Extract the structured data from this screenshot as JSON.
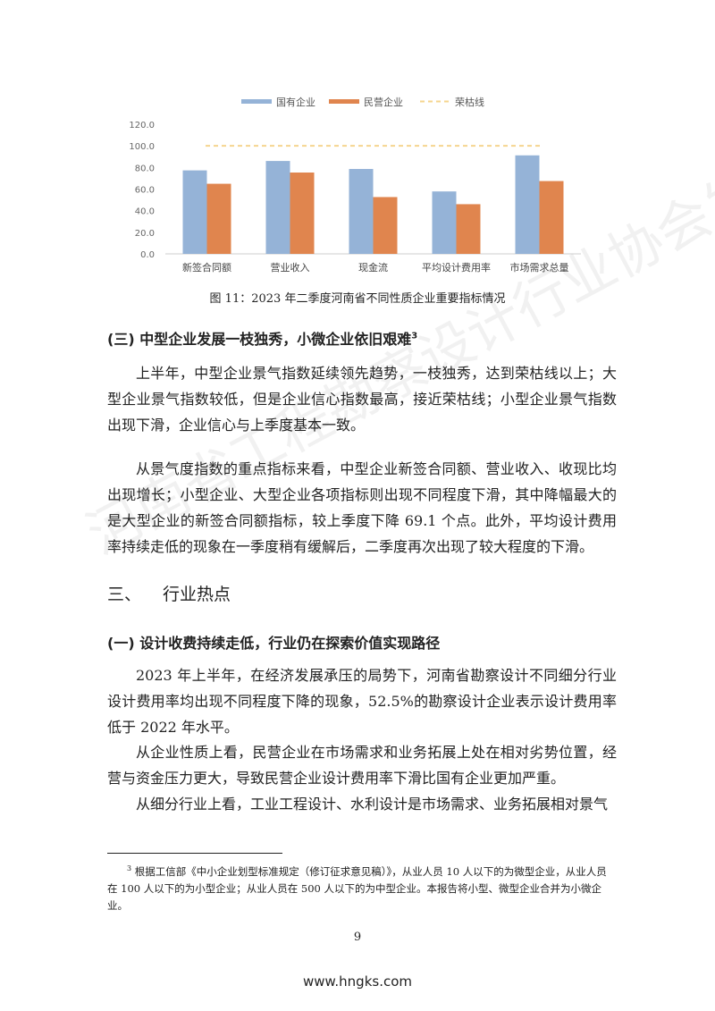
{
  "chart_data": {
    "type": "bar",
    "title": "",
    "categories": [
      "新签合同额",
      "营业收入",
      "现金流",
      "平均设计费用率",
      "市场需求总量"
    ],
    "series": [
      {
        "name": "国有企业",
        "color": "#95b3d7",
        "values": [
          77.3,
          86.0,
          78.6,
          57.8,
          91.2
        ]
      },
      {
        "name": "民营企业",
        "color": "#e0854e",
        "values": [
          64.9,
          75.3,
          52.6,
          46.0,
          67.4
        ]
      }
    ],
    "reference_line": {
      "name": "荣枯线",
      "value": 100,
      "color": "#f5d58e",
      "style": "dashed"
    },
    "yticks": [
      "0.0",
      "20.0",
      "40.0",
      "60.0",
      "80.0",
      "100.0",
      "120.0"
    ],
    "ylim": [
      0,
      120
    ],
    "grid": false,
    "legend": "top"
  },
  "caption": "图 11：2023 年二季度河南省不同性质企业重要指标情况",
  "section3": {
    "heading": "(三) 中型企业发展一枝独秀，小微企业依旧艰难",
    "footnote_mark": "3",
    "p1": "上半年，中型企业景气指数延续领先趋势，一枝独秀，达到荣枯线以上；大型企业景气指数较低，但是企业信心指数最高，接近荣枯线；小型企业景气指数出现下滑，企业信心与上季度基本一致。",
    "p2": "从景气度指数的重点指标来看，中型企业新签合同额、营业收入、收现比均出现增长；小型企业、大型企业各项指标则出现不同程度下滑，其中降幅最大的是大型企业的新签合同额指标，较上季度下降 69.1 个点。此外，平均设计费用率持续走低的现象在一季度稍有缓解后，二季度再次出现了较大程度的下滑。"
  },
  "chapter": {
    "number": "三、",
    "title": "行业热点"
  },
  "section1": {
    "heading": "(一) 设计收费持续走低，行业仍在探索价值实现路径",
    "p1": "2023 年上半年，在经济发展承压的局势下，河南省勘察设计不同细分行业设计费用率均出现不同程度下降的现象，52.5%的勘察设计企业表示设计费用率低于 2022 年水平。",
    "p2": "从企业性质上看，民营企业在市场需求和业务拓展上处在相对劣势位置，经营与资金压力更大，导致民营企业设计费用率下滑比国有企业更加严重。",
    "p3": "从细分行业上看，工业工程设计、水利设计是市场需求、业务拓展相对景气"
  },
  "footnote": {
    "mark": "3",
    "text": "根据工信部《中小企业划型标准规定（修订征求意见稿）》，从业人员 10 人以下的为微型企业，从业人员在 100 人以下的为小型企业；从业人员在 500 人以下的为中型企业。本报告将小型、微型企业合并为小微企业。"
  },
  "page_number": "9",
  "website": "www.hngks.com",
  "watermark": "河南省工程勘察设计行业协会发布"
}
